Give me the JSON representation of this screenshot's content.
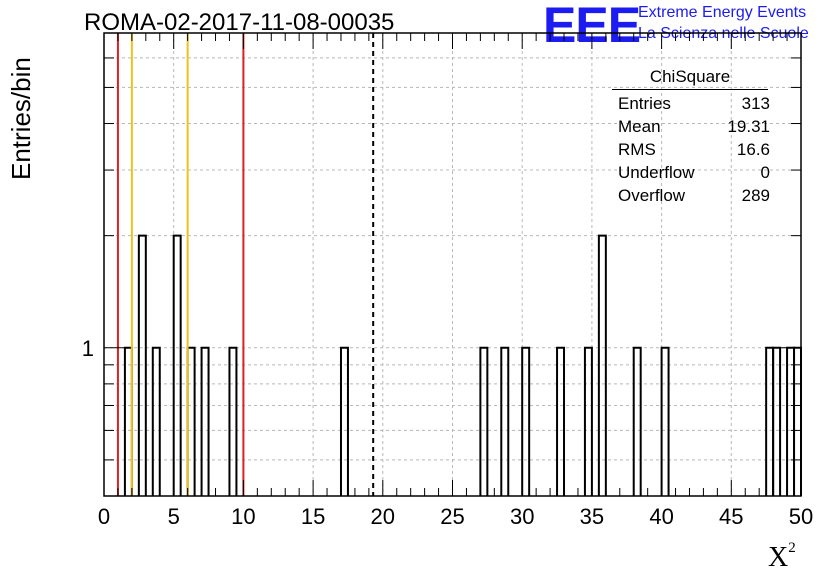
{
  "chart_data": {
    "type": "histogram",
    "title": "ROMA-02-2017-11-08-00035",
    "xlabel": "X",
    "xlabel_superscript": "2",
    "ylabel": "Entries/bin",
    "xlim": [
      0,
      50
    ],
    "ylim": [
      0.4,
      7
    ],
    "yscale": "log",
    "grid": true,
    "bin_width": 0.5,
    "x_ticks": [
      "0",
      "5",
      "10",
      "15",
      "20",
      "25",
      "30",
      "35",
      "40",
      "45",
      "50"
    ],
    "y_tick_labels": [
      "1"
    ],
    "bins": [
      {
        "x": 1.5,
        "count": 1
      },
      {
        "x": 2.5,
        "count": 2
      },
      {
        "x": 3.5,
        "count": 1
      },
      {
        "x": 5.0,
        "count": 2
      },
      {
        "x": 6.0,
        "count": 1
      },
      {
        "x": 7.0,
        "count": 1
      },
      {
        "x": 9.0,
        "count": 1
      },
      {
        "x": 17.0,
        "count": 1
      },
      {
        "x": 27.0,
        "count": 1
      },
      {
        "x": 28.5,
        "count": 1
      },
      {
        "x": 30.0,
        "count": 1
      },
      {
        "x": 32.5,
        "count": 1
      },
      {
        "x": 34.5,
        "count": 1
      },
      {
        "x": 35.5,
        "count": 2
      },
      {
        "x": 38.0,
        "count": 1
      },
      {
        "x": 40.0,
        "count": 1
      },
      {
        "x": 47.5,
        "count": 1
      },
      {
        "x": 48.0,
        "count": 1
      },
      {
        "x": 49.0,
        "count": 1
      },
      {
        "x": 49.5,
        "count": 1
      }
    ],
    "vertical_lines": [
      {
        "x": 1.0,
        "color": "#dd2020",
        "style": "solid"
      },
      {
        "x": 2.0,
        "color": "#f0c020",
        "style": "solid"
      },
      {
        "x": 6.0,
        "color": "#f0c020",
        "style": "solid"
      },
      {
        "x": 10.0,
        "color": "#dd2020",
        "style": "solid"
      },
      {
        "x": 19.31,
        "color": "#000000",
        "style": "dashed"
      }
    ],
    "stats": {
      "name": "ChiSquare",
      "rows": [
        {
          "label": "Entries",
          "value": "313"
        },
        {
          "label": "Mean",
          "value": "19.31"
        },
        {
          "label": "RMS",
          "value": "16.6"
        },
        {
          "label": "Underflow",
          "value": "0"
        },
        {
          "label": "Overflow",
          "value": "289"
        }
      ]
    }
  },
  "logo": {
    "text": "EEE",
    "line1": "Extreme Energy Events",
    "line2": "La Scienza nelle Scuole",
    "color": "#1c1cf0"
  }
}
